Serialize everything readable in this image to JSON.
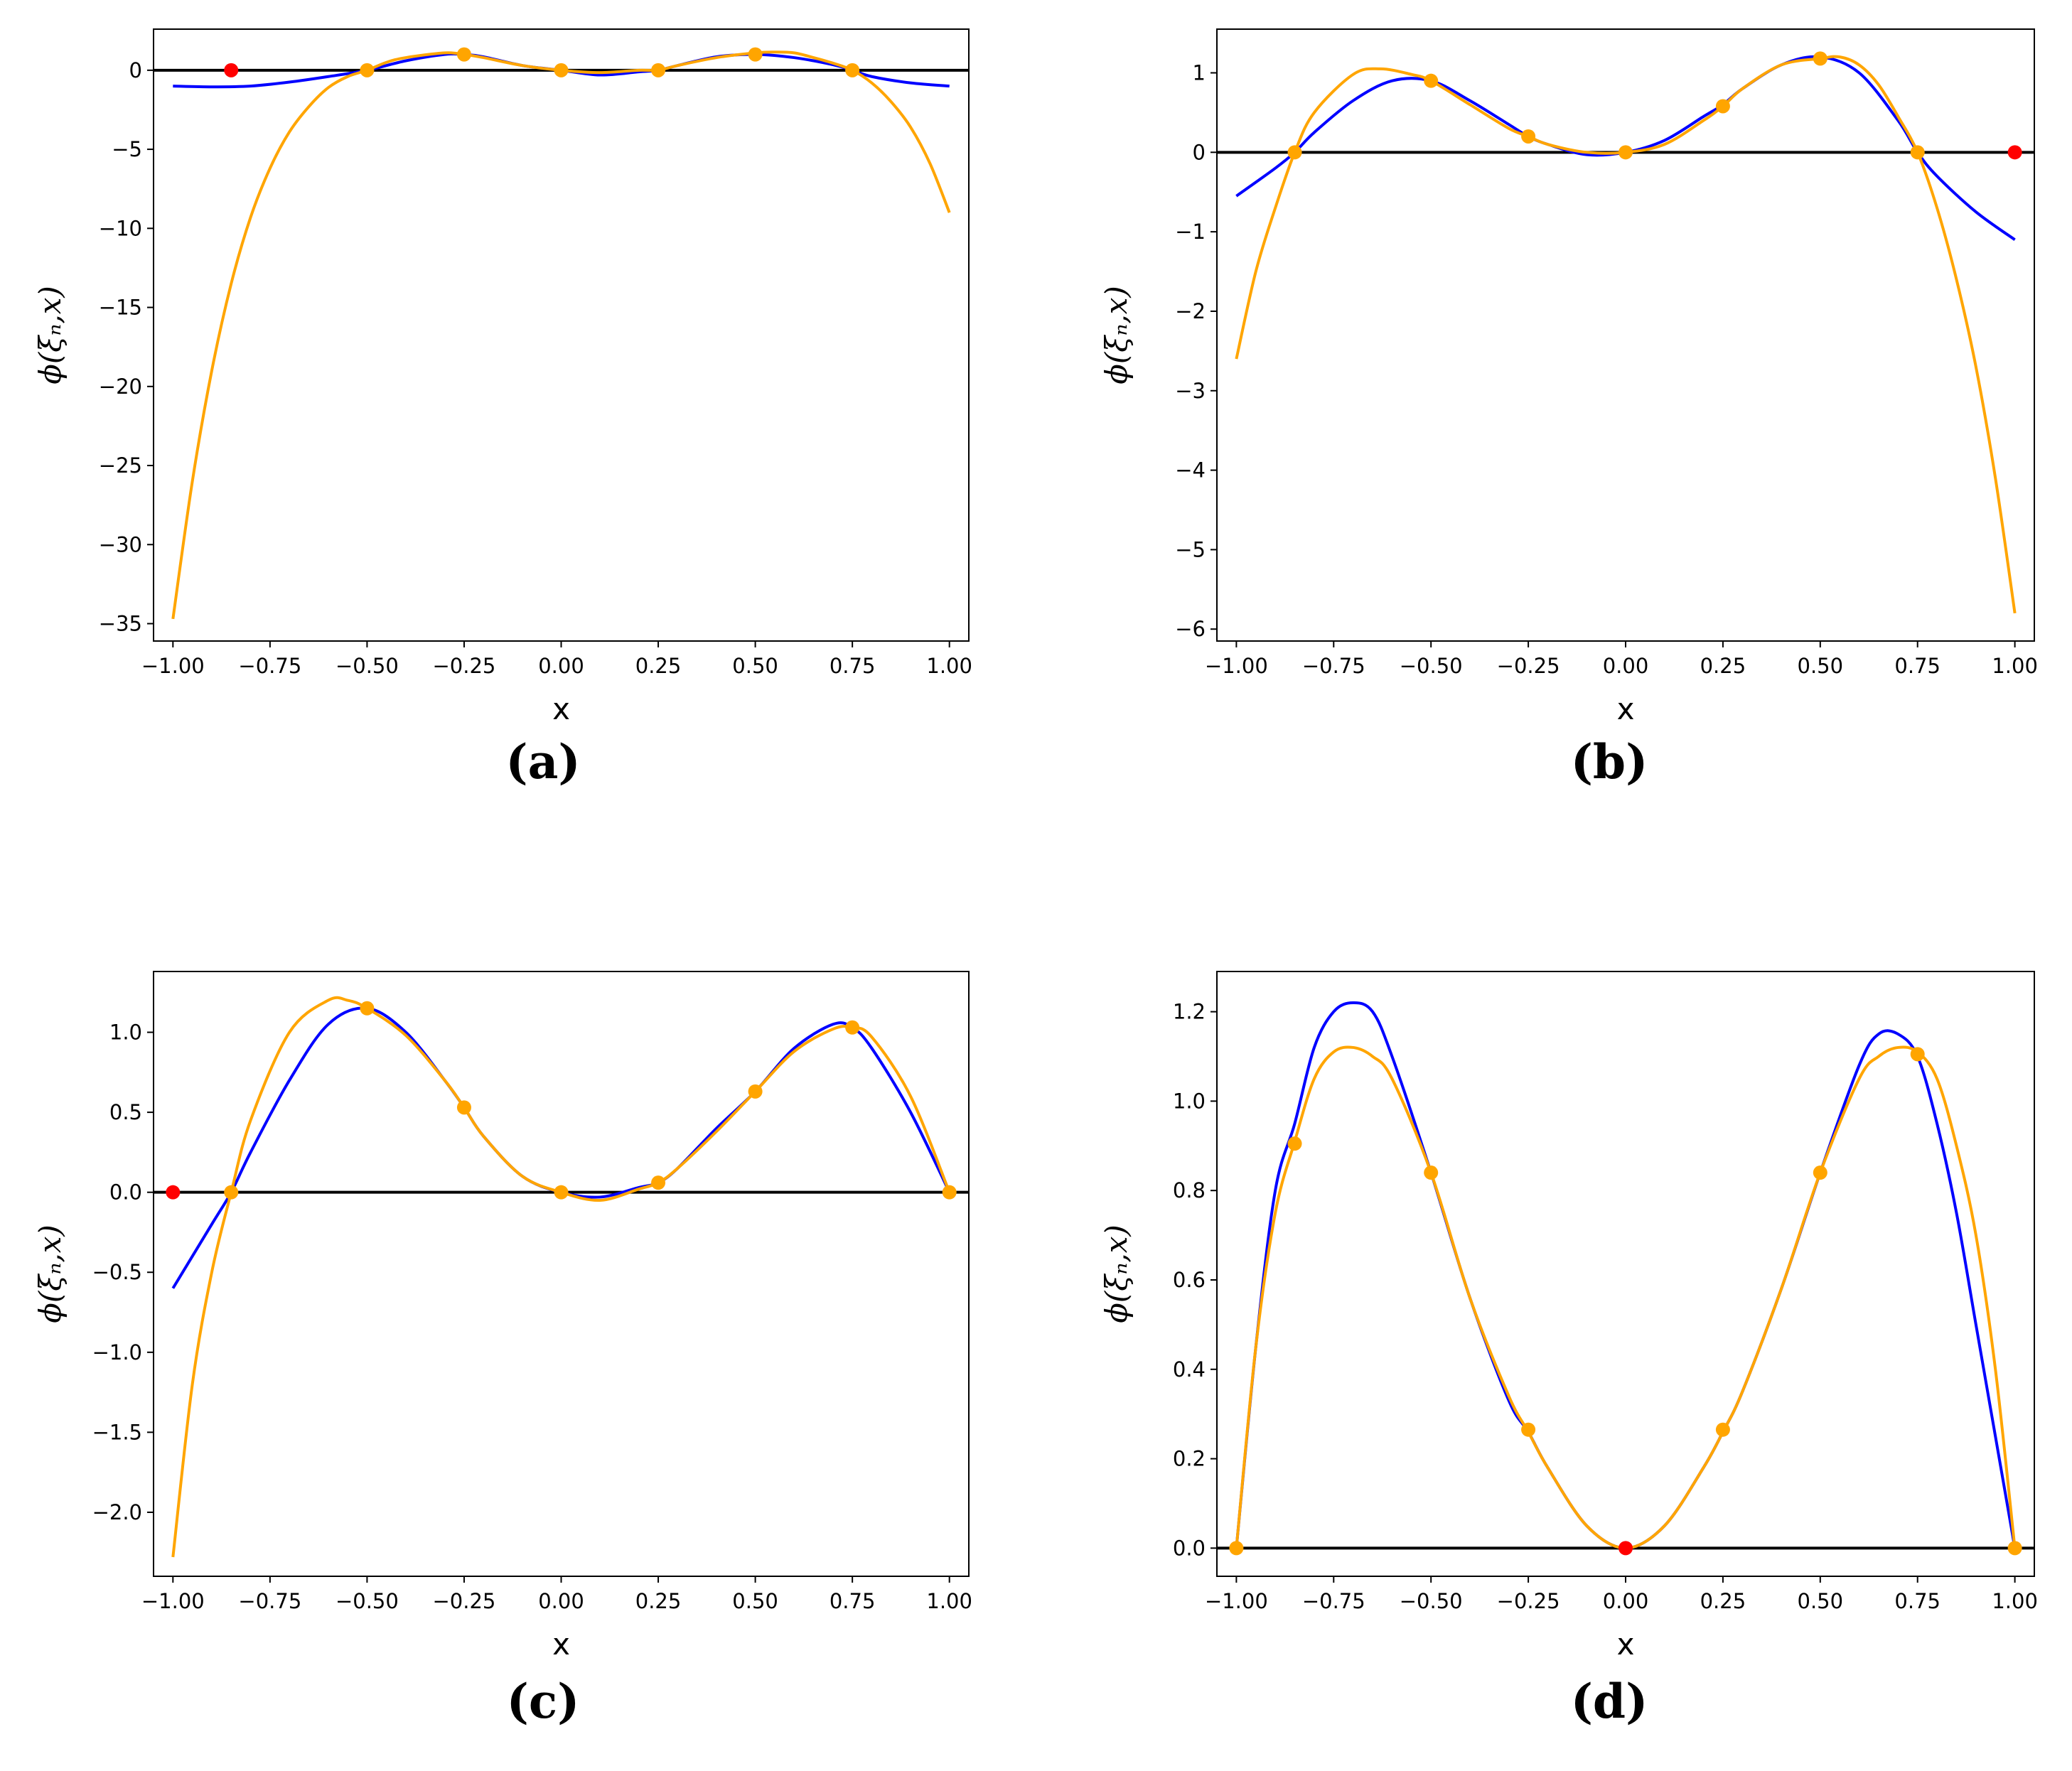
{
  "colors": {
    "interp": "#0000ff",
    "approx": "#ffa500",
    "baseline": "#000000",
    "special": "#ff0000",
    "node": "#ffa500"
  },
  "chart_data": [
    {
      "type": "line",
      "panel": "(a)",
      "xlabel": "x",
      "ylabel": "ϕ(ξₙ,x)",
      "xlim": [
        -1.05,
        1.05
      ],
      "ylim": [
        -36.1,
        2.6
      ],
      "xticks": [
        -1.0,
        -0.75,
        -0.5,
        -0.25,
        0.0,
        0.25,
        0.5,
        0.75,
        1.0
      ],
      "xtick_labels": [
        "−1.00",
        "−0.75",
        "−0.50",
        "−0.25",
        "0.00",
        "0.25",
        "0.50",
        "0.75",
        "1.00"
      ],
      "yticks": [
        0,
        -5,
        -10,
        -15,
        -20,
        -25,
        -30,
        -35
      ],
      "ytick_labels": [
        "0",
        "−5",
        "−10",
        "−15",
        "−20",
        "−25",
        "−30",
        "−35"
      ],
      "series": [
        {
          "name": "blue",
          "color": "#0000ff",
          "x": [
            -1.0,
            -0.9,
            -0.8,
            -0.7,
            -0.6,
            -0.5,
            -0.4,
            -0.3,
            -0.25,
            -0.2,
            -0.1,
            0.0,
            0.1,
            0.2,
            0.25,
            0.3,
            0.4,
            0.5,
            0.6,
            0.7,
            0.75,
            0.8,
            0.9,
            1.0
          ],
          "y": [
            -1.0,
            -1.05,
            -1.0,
            -0.75,
            -0.4,
            0.0,
            0.6,
            1.0,
            1.0,
            0.85,
            0.3,
            0.0,
            -0.3,
            -0.1,
            0.0,
            0.3,
            0.85,
            1.0,
            0.8,
            0.35,
            0.0,
            -0.4,
            -0.8,
            -1.0
          ]
        },
        {
          "name": "orange",
          "color": "#ffa500",
          "x": [
            -1.0,
            -0.95,
            -0.9,
            -0.85,
            -0.8,
            -0.75,
            -0.7,
            -0.65,
            -0.6,
            -0.55,
            -0.5,
            -0.45,
            -0.4,
            -0.3,
            -0.25,
            -0.2,
            -0.1,
            0.0,
            0.1,
            0.2,
            0.25,
            0.3,
            0.4,
            0.5,
            0.55,
            0.6,
            0.65,
            0.7,
            0.75,
            0.8,
            0.85,
            0.9,
            0.95,
            1.0
          ],
          "y": [
            -34.7,
            -26.0,
            -19.0,
            -13.5,
            -9.3,
            -6.2,
            -3.9,
            -2.3,
            -1.1,
            -0.4,
            0.0,
            0.5,
            0.8,
            1.1,
            1.0,
            0.8,
            0.3,
            0.0,
            -0.15,
            0.0,
            0.0,
            0.3,
            0.8,
            1.1,
            1.15,
            1.1,
            0.8,
            0.45,
            0.0,
            -0.8,
            -2.0,
            -3.6,
            -5.9,
            -9.0
          ]
        }
      ],
      "points": {
        "orange_x": [
          -0.5,
          -0.25,
          0.0,
          0.25,
          0.5,
          0.75
        ],
        "orange_y": [
          0.0,
          1.0,
          0.0,
          0.0,
          1.0,
          0.0
        ],
        "red_x": [
          -0.85
        ],
        "red_y": [
          0.0
        ]
      }
    },
    {
      "type": "line",
      "panel": "(b)",
      "xlabel": "x",
      "ylabel": "ϕ(ξₙ,x)",
      "xlim": [
        -1.05,
        1.05
      ],
      "ylim": [
        -6.15,
        1.55
      ],
      "xticks": [
        -1.0,
        -0.75,
        -0.5,
        -0.25,
        0.0,
        0.25,
        0.5,
        0.75,
        1.0
      ],
      "xtick_labels": [
        "−1.00",
        "−0.75",
        "−0.50",
        "−0.25",
        "0.00",
        "0.25",
        "0.50",
        "0.75",
        "1.00"
      ],
      "yticks": [
        1,
        0,
        -1,
        -2,
        -3,
        -4,
        -5,
        -6
      ],
      "ytick_labels": [
        "1",
        "0",
        "−1",
        "−2",
        "−3",
        "−4",
        "−5",
        "−6"
      ],
      "series": [
        {
          "name": "blue",
          "color": "#0000ff",
          "x": [
            -1.0,
            -0.9,
            -0.85,
            -0.8,
            -0.7,
            -0.6,
            -0.5,
            -0.4,
            -0.3,
            -0.25,
            -0.2,
            -0.1,
            0.0,
            0.1,
            0.2,
            0.25,
            0.3,
            0.4,
            0.5,
            0.6,
            0.7,
            0.75,
            0.8,
            0.9,
            1.0
          ],
          "y": [
            -0.55,
            -0.2,
            0.0,
            0.25,
            0.65,
            0.9,
            0.9,
            0.65,
            0.35,
            0.2,
            0.1,
            -0.03,
            0.0,
            0.15,
            0.45,
            0.6,
            0.8,
            1.1,
            1.2,
            1.0,
            0.4,
            0.0,
            -0.3,
            -0.75,
            -1.1
          ]
        },
        {
          "name": "orange",
          "color": "#ffa500",
          "x": [
            -1.0,
            -0.95,
            -0.9,
            -0.85,
            -0.8,
            -0.7,
            -0.63,
            -0.55,
            -0.5,
            -0.4,
            -0.3,
            -0.25,
            -0.2,
            -0.1,
            0.0,
            0.1,
            0.2,
            0.25,
            0.3,
            0.4,
            0.5,
            0.55,
            0.6,
            0.65,
            0.7,
            0.75,
            0.8,
            0.85,
            0.9,
            0.95,
            1.0
          ],
          "y": [
            -2.6,
            -1.5,
            -0.7,
            0.0,
            0.5,
            0.98,
            1.05,
            0.98,
            0.9,
            0.6,
            0.3,
            0.2,
            0.1,
            0.0,
            0.0,
            0.1,
            0.4,
            0.58,
            0.8,
            1.1,
            1.18,
            1.2,
            1.1,
            0.85,
            0.45,
            0.0,
            -0.7,
            -1.6,
            -2.7,
            -4.1,
            -5.8
          ]
        }
      ],
      "points": {
        "orange_x": [
          -0.85,
          -0.5,
          -0.25,
          0.0,
          0.25,
          0.5,
          0.75
        ],
        "orange_y": [
          0.0,
          0.9,
          0.2,
          0.0,
          0.58,
          1.18,
          0.0
        ],
        "red_x": [
          1.0
        ],
        "red_y": [
          0.0
        ]
      }
    },
    {
      "type": "line",
      "panel": "(c)",
      "xlabel": "x",
      "ylabel": "ϕ(ξₙ,x)",
      "xlim": [
        -1.05,
        1.05
      ],
      "ylim": [
        -2.4,
        1.38
      ],
      "xticks": [
        -1.0,
        -0.75,
        -0.5,
        -0.25,
        0.0,
        0.25,
        0.5,
        0.75,
        1.0
      ],
      "xtick_labels": [
        "−1.00",
        "−0.75",
        "−0.50",
        "−0.25",
        "0.00",
        "0.25",
        "0.50",
        "0.75",
        "1.00"
      ],
      "yticks": [
        1.0,
        0.5,
        0.0,
        -0.5,
        -1.0,
        -1.5,
        -2.0
      ],
      "ytick_labels": [
        "1.0",
        "0.5",
        "0.0",
        "−0.5",
        "−1.0",
        "−1.5",
        "−2.0"
      ],
      "series": [
        {
          "name": "blue",
          "color": "#0000ff",
          "x": [
            -1.0,
            -0.9,
            -0.85,
            -0.8,
            -0.7,
            -0.6,
            -0.5,
            -0.4,
            -0.3,
            -0.25,
            -0.2,
            -0.1,
            0.0,
            0.1,
            0.2,
            0.25,
            0.3,
            0.4,
            0.5,
            0.6,
            0.7,
            0.75,
            0.8,
            0.9,
            1.0
          ],
          "y": [
            -0.6,
            -0.2,
            0.0,
            0.25,
            0.7,
            1.05,
            1.15,
            1.0,
            0.7,
            0.53,
            0.35,
            0.1,
            0.0,
            -0.03,
            0.03,
            0.06,
            0.15,
            0.4,
            0.63,
            0.9,
            1.05,
            1.03,
            0.9,
            0.5,
            0.0
          ]
        },
        {
          "name": "orange",
          "color": "#ffa500",
          "x": [
            -1.0,
            -0.95,
            -0.9,
            -0.85,
            -0.8,
            -0.7,
            -0.6,
            -0.55,
            -0.5,
            -0.4,
            -0.3,
            -0.25,
            -0.2,
            -0.1,
            0.0,
            0.1,
            0.2,
            0.25,
            0.3,
            0.4,
            0.5,
            0.6,
            0.7,
            0.75,
            0.8,
            0.9,
            1.0
          ],
          "y": [
            -2.28,
            -1.2,
            -0.5,
            0.0,
            0.45,
            1.0,
            1.2,
            1.2,
            1.15,
            0.98,
            0.7,
            0.53,
            0.35,
            0.1,
            0.0,
            -0.05,
            0.02,
            0.06,
            0.15,
            0.38,
            0.63,
            0.88,
            1.02,
            1.03,
            0.97,
            0.6,
            0.0
          ]
        }
      ],
      "points": {
        "orange_x": [
          -0.85,
          -0.5,
          -0.25,
          0.0,
          0.25,
          0.5,
          0.75,
          1.0
        ],
        "orange_y": [
          0.0,
          1.15,
          0.53,
          0.0,
          0.06,
          0.63,
          1.03,
          0.0
        ],
        "red_x": [
          -1.0
        ],
        "red_y": [
          0.0
        ]
      }
    },
    {
      "type": "line",
      "panel": "(d)",
      "xlabel": "x",
      "ylabel": "ϕ(ξₙ,x)",
      "xlim": [
        -1.05,
        1.05
      ],
      "ylim": [
        -0.063,
        1.29
      ],
      "xticks": [
        -1.0,
        -0.75,
        -0.5,
        -0.25,
        0.0,
        0.25,
        0.5,
        0.75,
        1.0
      ],
      "xtick_labels": [
        "−1.00",
        "−0.75",
        "−0.50",
        "−0.25",
        "0.00",
        "0.25",
        "0.50",
        "0.75",
        "1.00"
      ],
      "yticks": [
        1.2,
        1.0,
        0.8,
        0.6,
        0.4,
        0.2,
        0.0
      ],
      "ytick_labels": [
        "1.2",
        "1.0",
        "0.8",
        "0.6",
        "0.4",
        "0.2",
        "0.0"
      ],
      "series": [
        {
          "name": "blue",
          "color": "#0000ff",
          "x": [
            -1.0,
            -0.95,
            -0.9,
            -0.85,
            -0.8,
            -0.75,
            -0.7,
            -0.65,
            -0.6,
            -0.5,
            -0.4,
            -0.3,
            -0.25,
            -0.2,
            -0.1,
            0.0,
            0.1,
            0.2,
            0.25,
            0.3,
            0.4,
            0.5,
            0.6,
            0.65,
            0.7,
            0.75,
            0.8,
            0.85,
            0.9,
            0.95,
            1.0
          ],
          "y": [
            0.0,
            0.45,
            0.8,
            0.95,
            1.12,
            1.2,
            1.22,
            1.2,
            1.1,
            0.84,
            0.56,
            0.33,
            0.26,
            0.18,
            0.05,
            0.0,
            0.05,
            0.18,
            0.26,
            0.35,
            0.58,
            0.84,
            1.08,
            1.15,
            1.15,
            1.1,
            0.95,
            0.75,
            0.5,
            0.25,
            0.0
          ]
        },
        {
          "name": "orange",
          "color": "#ffa500",
          "x": [
            -1.0,
            -0.95,
            -0.9,
            -0.85,
            -0.8,
            -0.75,
            -0.7,
            -0.65,
            -0.6,
            -0.5,
            -0.4,
            -0.3,
            -0.25,
            -0.2,
            -0.1,
            0.0,
            0.1,
            0.2,
            0.25,
            0.3,
            0.4,
            0.5,
            0.6,
            0.65,
            0.7,
            0.75,
            0.8,
            0.85,
            0.9,
            0.95,
            1.0
          ],
          "y": [
            0.0,
            0.45,
            0.75,
            0.91,
            1.05,
            1.11,
            1.12,
            1.1,
            1.05,
            0.84,
            0.56,
            0.34,
            0.26,
            0.18,
            0.05,
            0.0,
            0.05,
            0.18,
            0.26,
            0.35,
            0.58,
            0.84,
            1.05,
            1.1,
            1.12,
            1.11,
            1.05,
            0.9,
            0.7,
            0.4,
            0.0
          ]
        }
      ],
      "points": {
        "orange_x": [
          -1.0,
          -0.85,
          -0.5,
          -0.25,
          0.25,
          0.5,
          0.75,
          1.0
        ],
        "orange_y": [
          0.0,
          0.905,
          0.84,
          0.265,
          0.265,
          0.84,
          1.105,
          0.0
        ],
        "red_x": [
          0.0
        ],
        "red_y": [
          0.0
        ]
      }
    }
  ]
}
